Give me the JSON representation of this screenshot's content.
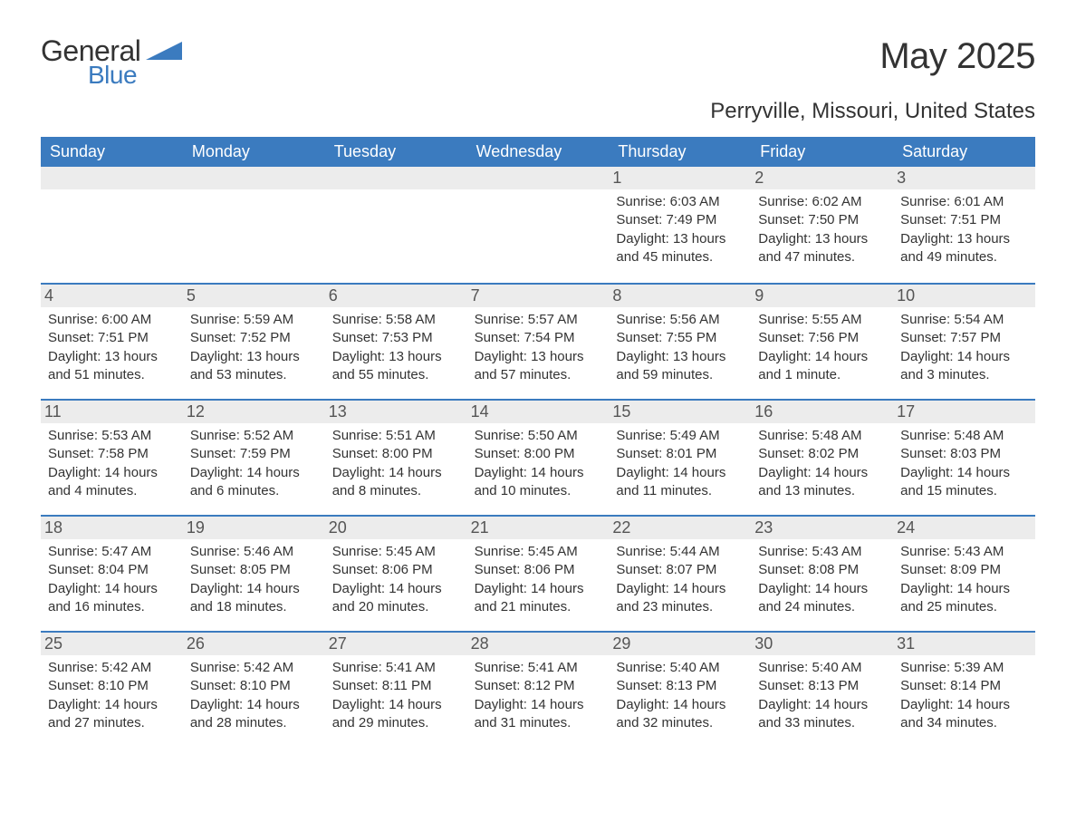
{
  "logo": {
    "word1": "General",
    "word2": "Blue",
    "accent_color": "#3b7bbf"
  },
  "title": "May 2025",
  "location": "Perryville, Missouri, United States",
  "colors": {
    "header_bg": "#3b7bbf",
    "header_text": "#ffffff",
    "daynum_bg": "#ececec",
    "week_border": "#3b7bbf",
    "body_text": "#333333",
    "background": "#ffffff"
  },
  "typography": {
    "title_fontsize": 40,
    "location_fontsize": 24,
    "dow_fontsize": 18,
    "daynum_fontsize": 18,
    "info_fontsize": 15
  },
  "days_of_week": [
    "Sunday",
    "Monday",
    "Tuesday",
    "Wednesday",
    "Thursday",
    "Friday",
    "Saturday"
  ],
  "labels": {
    "sunrise": "Sunrise:",
    "sunset": "Sunset:",
    "daylight": "Daylight:"
  },
  "weeks": [
    [
      null,
      null,
      null,
      null,
      {
        "n": "1",
        "sunrise": "6:03 AM",
        "sunset": "7:49 PM",
        "daylight": "13 hours and 45 minutes."
      },
      {
        "n": "2",
        "sunrise": "6:02 AM",
        "sunset": "7:50 PM",
        "daylight": "13 hours and 47 minutes."
      },
      {
        "n": "3",
        "sunrise": "6:01 AM",
        "sunset": "7:51 PM",
        "daylight": "13 hours and 49 minutes."
      }
    ],
    [
      {
        "n": "4",
        "sunrise": "6:00 AM",
        "sunset": "7:51 PM",
        "daylight": "13 hours and 51 minutes."
      },
      {
        "n": "5",
        "sunrise": "5:59 AM",
        "sunset": "7:52 PM",
        "daylight": "13 hours and 53 minutes."
      },
      {
        "n": "6",
        "sunrise": "5:58 AM",
        "sunset": "7:53 PM",
        "daylight": "13 hours and 55 minutes."
      },
      {
        "n": "7",
        "sunrise": "5:57 AM",
        "sunset": "7:54 PM",
        "daylight": "13 hours and 57 minutes."
      },
      {
        "n": "8",
        "sunrise": "5:56 AM",
        "sunset": "7:55 PM",
        "daylight": "13 hours and 59 minutes."
      },
      {
        "n": "9",
        "sunrise": "5:55 AM",
        "sunset": "7:56 PM",
        "daylight": "14 hours and 1 minute."
      },
      {
        "n": "10",
        "sunrise": "5:54 AM",
        "sunset": "7:57 PM",
        "daylight": "14 hours and 3 minutes."
      }
    ],
    [
      {
        "n": "11",
        "sunrise": "5:53 AM",
        "sunset": "7:58 PM",
        "daylight": "14 hours and 4 minutes."
      },
      {
        "n": "12",
        "sunrise": "5:52 AM",
        "sunset": "7:59 PM",
        "daylight": "14 hours and 6 minutes."
      },
      {
        "n": "13",
        "sunrise": "5:51 AM",
        "sunset": "8:00 PM",
        "daylight": "14 hours and 8 minutes."
      },
      {
        "n": "14",
        "sunrise": "5:50 AM",
        "sunset": "8:00 PM",
        "daylight": "14 hours and 10 minutes."
      },
      {
        "n": "15",
        "sunrise": "5:49 AM",
        "sunset": "8:01 PM",
        "daylight": "14 hours and 11 minutes."
      },
      {
        "n": "16",
        "sunrise": "5:48 AM",
        "sunset": "8:02 PM",
        "daylight": "14 hours and 13 minutes."
      },
      {
        "n": "17",
        "sunrise": "5:48 AM",
        "sunset": "8:03 PM",
        "daylight": "14 hours and 15 minutes."
      }
    ],
    [
      {
        "n": "18",
        "sunrise": "5:47 AM",
        "sunset": "8:04 PM",
        "daylight": "14 hours and 16 minutes."
      },
      {
        "n": "19",
        "sunrise": "5:46 AM",
        "sunset": "8:05 PM",
        "daylight": "14 hours and 18 minutes."
      },
      {
        "n": "20",
        "sunrise": "5:45 AM",
        "sunset": "8:06 PM",
        "daylight": "14 hours and 20 minutes."
      },
      {
        "n": "21",
        "sunrise": "5:45 AM",
        "sunset": "8:06 PM",
        "daylight": "14 hours and 21 minutes."
      },
      {
        "n": "22",
        "sunrise": "5:44 AM",
        "sunset": "8:07 PM",
        "daylight": "14 hours and 23 minutes."
      },
      {
        "n": "23",
        "sunrise": "5:43 AM",
        "sunset": "8:08 PM",
        "daylight": "14 hours and 24 minutes."
      },
      {
        "n": "24",
        "sunrise": "5:43 AM",
        "sunset": "8:09 PM",
        "daylight": "14 hours and 25 minutes."
      }
    ],
    [
      {
        "n": "25",
        "sunrise": "5:42 AM",
        "sunset": "8:10 PM",
        "daylight": "14 hours and 27 minutes."
      },
      {
        "n": "26",
        "sunrise": "5:42 AM",
        "sunset": "8:10 PM",
        "daylight": "14 hours and 28 minutes."
      },
      {
        "n": "27",
        "sunrise": "5:41 AM",
        "sunset": "8:11 PM",
        "daylight": "14 hours and 29 minutes."
      },
      {
        "n": "28",
        "sunrise": "5:41 AM",
        "sunset": "8:12 PM",
        "daylight": "14 hours and 31 minutes."
      },
      {
        "n": "29",
        "sunrise": "5:40 AM",
        "sunset": "8:13 PM",
        "daylight": "14 hours and 32 minutes."
      },
      {
        "n": "30",
        "sunrise": "5:40 AM",
        "sunset": "8:13 PM",
        "daylight": "14 hours and 33 minutes."
      },
      {
        "n": "31",
        "sunrise": "5:39 AM",
        "sunset": "8:14 PM",
        "daylight": "14 hours and 34 minutes."
      }
    ]
  ]
}
